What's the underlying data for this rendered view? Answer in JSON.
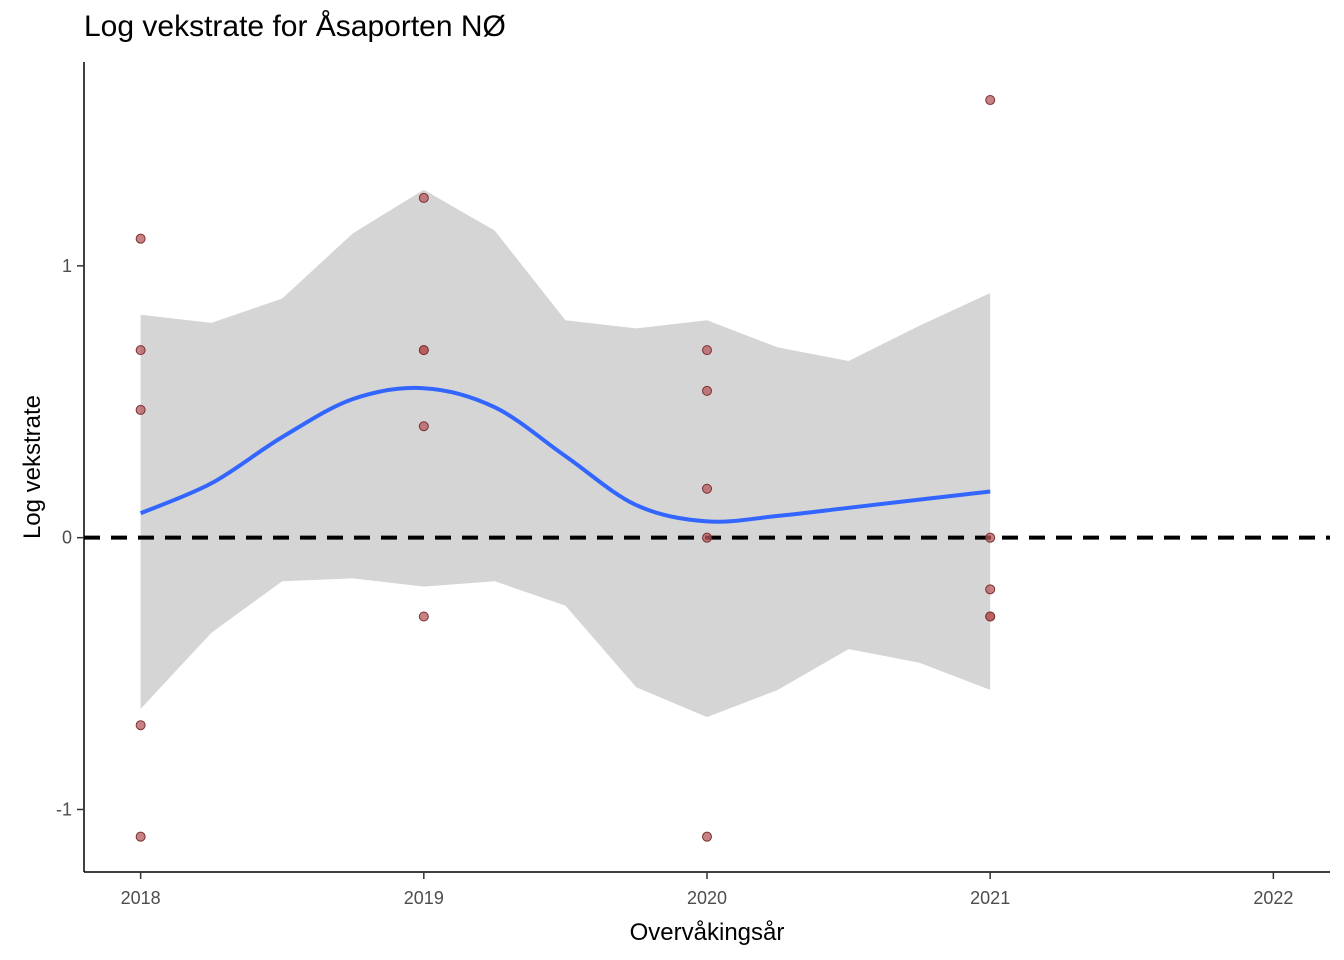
{
  "chart_data": {
    "type": "scatter",
    "title": "Log vekstrate for Åsaporten NØ",
    "xlabel": "Overvåkingsår",
    "ylabel": "Log vekstrate",
    "xlim": [
      2017.8,
      2022.2
    ],
    "ylim": [
      -1.23,
      1.75
    ],
    "x_ticks": [
      2018,
      2019,
      2020,
      2021,
      2022
    ],
    "y_ticks": [
      -1,
      0,
      1
    ],
    "y_tick_labels": [
      "-1",
      "0",
      "1"
    ],
    "reference_line": {
      "y": 0,
      "style": "dashed",
      "color": "#000000"
    },
    "points": [
      {
        "x": 2018,
        "y": 1.1
      },
      {
        "x": 2018,
        "y": 0.69
      },
      {
        "x": 2018,
        "y": 0.47
      },
      {
        "x": 2018,
        "y": -0.69
      },
      {
        "x": 2018,
        "y": -1.1
      },
      {
        "x": 2019,
        "y": 1.25
      },
      {
        "x": 2019,
        "y": 0.69
      },
      {
        "x": 2019,
        "y": 0.69
      },
      {
        "x": 2019,
        "y": 0.41
      },
      {
        "x": 2019,
        "y": -0.29
      },
      {
        "x": 2020,
        "y": 0.69
      },
      {
        "x": 2020,
        "y": 0.54
      },
      {
        "x": 2020,
        "y": 0.18
      },
      {
        "x": 2020,
        "y": 0.0
      },
      {
        "x": 2020,
        "y": -1.1
      },
      {
        "x": 2021,
        "y": 1.61
      },
      {
        "x": 2021,
        "y": 0.0
      },
      {
        "x": 2021,
        "y": -0.19
      },
      {
        "x": 2021,
        "y": -0.29
      },
      {
        "x": 2021,
        "y": -0.29
      }
    ],
    "smooth": {
      "x": [
        2018,
        2018.25,
        2018.5,
        2018.75,
        2019,
        2019.25,
        2019.5,
        2019.75,
        2020,
        2020.25,
        2020.5,
        2020.75,
        2021
      ],
      "y": [
        0.09,
        0.2,
        0.37,
        0.51,
        0.55,
        0.48,
        0.3,
        0.12,
        0.06,
        0.08,
        0.11,
        0.14,
        0.17
      ],
      "lower": [
        -0.63,
        -0.35,
        -0.16,
        -0.15,
        -0.18,
        -0.16,
        -0.25,
        -0.55,
        -0.66,
        -0.56,
        -0.41,
        -0.46,
        -0.56
      ],
      "upper": [
        0.82,
        0.79,
        0.88,
        1.12,
        1.28,
        1.13,
        0.8,
        0.77,
        0.8,
        0.7,
        0.65,
        0.78,
        0.9
      ]
    },
    "colors": {
      "point_fill": "#b5585a",
      "point_stroke": "#7a2f30",
      "smooth_line": "#3366ff",
      "ribbon": "#d3d3d3",
      "axis": "#000000"
    },
    "grid": false,
    "legend": "none"
  }
}
